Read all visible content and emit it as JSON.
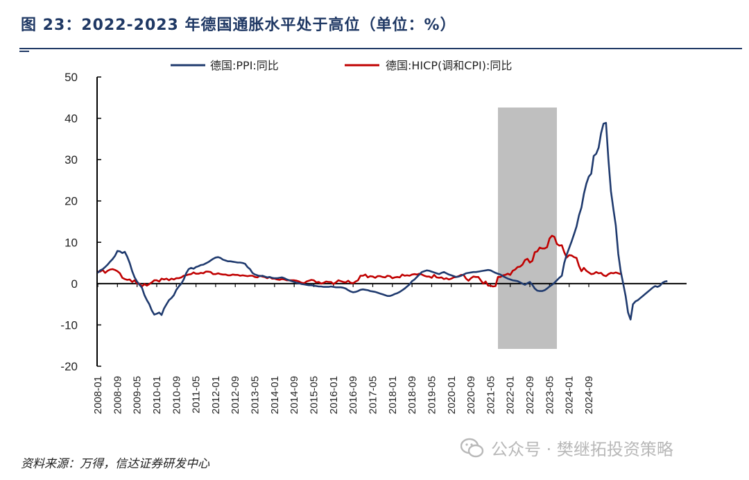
{
  "figure": {
    "title": "图 23：2022-2023 年德国通胀水平处于高位（单位：%）",
    "source": "资料来源：万得，信达证券研发中心",
    "watermark": "公众号 · 樊继拓投资策略"
  },
  "colors": {
    "accent": "#1f3864",
    "ppi": "#1f3a6e",
    "hicp": "#c00000",
    "shade": "#bfbfbf"
  },
  "chart_data": {
    "type": "line",
    "title": "",
    "xlabel": "",
    "ylabel": "",
    "ylim": [
      -20,
      50
    ],
    "yticks": [
      "50",
      "40",
      "30",
      "20",
      "10",
      "0",
      "-10",
      "-20"
    ],
    "xticks": [
      "2008-01",
      "2008-09",
      "2009-05",
      "2010-01",
      "2010-09",
      "2011-05",
      "2012-01",
      "2012-09",
      "2013-05",
      "2014-01",
      "2014-09",
      "2015-05",
      "2016-01",
      "2016-09",
      "2017-05",
      "2018-01",
      "2018-09",
      "2019-05",
      "2020-01",
      "2020-09",
      "2021-05",
      "2022-01",
      "2022-09",
      "2023-05",
      "2024-01",
      "2024-09"
    ],
    "x_start": "2008-01",
    "grid": false,
    "legend_position": "top",
    "shaded_region": {
      "from": "2021-08",
      "to": "2023-08"
    },
    "series": [
      {
        "name": "德国:PPI:同比",
        "color": "#1f3a6e",
        "values": [
          2.6,
          3.2,
          3.5,
          4.0,
          4.6,
          5.3,
          5.9,
          6.7,
          7.9,
          7.8,
          7.4,
          7.7,
          6.5,
          5.0,
          3.0,
          1.5,
          0.5,
          -0.3,
          -1.0,
          -2.8,
          -4.0,
          -5.0,
          -6.5,
          -7.5,
          -7.3,
          -7.0,
          -7.6,
          -6.0,
          -5.0,
          -4.0,
          -3.5,
          -2.8,
          -1.5,
          -0.7,
          0.0,
          1.0,
          2.5,
          3.5,
          3.8,
          3.6,
          4.0,
          4.2,
          4.5,
          4.6,
          4.9,
          5.2,
          5.6,
          6.0,
          6.3,
          6.4,
          6.2,
          5.8,
          5.6,
          5.4,
          5.4,
          5.3,
          5.2,
          5.1,
          5.1,
          5.0,
          4.8,
          4.0,
          3.5,
          2.6,
          2.2,
          2.0,
          1.8,
          1.9,
          1.7,
          1.5,
          1.6,
          1.4,
          1.3,
          1.3,
          1.4,
          1.5,
          1.3,
          1.0,
          0.8,
          0.6,
          0.4,
          0.2,
          0.1,
          -0.1,
          -0.2,
          -0.3,
          -0.4,
          -0.4,
          -0.5,
          -0.6,
          -0.7,
          -0.7,
          -0.8,
          -0.8,
          -0.8,
          -0.7,
          -0.8,
          -0.9,
          -0.9,
          -0.9,
          -1.0,
          -1.2,
          -1.6,
          -1.9,
          -2.1,
          -2.0,
          -1.8,
          -1.5,
          -1.4,
          -1.5,
          -1.6,
          -1.8,
          -1.9,
          -2.0,
          -2.2,
          -2.4,
          -2.6,
          -2.8,
          -3.0,
          -3.0,
          -2.8,
          -2.5,
          -2.3,
          -2.0,
          -1.6,
          -1.2,
          -0.7,
          -0.2,
          0.6,
          1.0,
          1.6,
          2.2,
          2.8,
          3.0,
          3.2,
          3.1,
          2.9,
          2.7,
          2.5,
          2.3,
          2.6,
          2.8,
          2.5,
          2.2,
          2.0,
          1.8,
          1.6,
          1.7,
          1.9,
          2.2,
          2.5,
          2.6,
          2.7,
          2.8,
          2.8,
          2.9,
          3.0,
          3.1,
          3.2,
          3.3,
          3.2,
          2.9,
          2.6,
          2.4,
          2.2,
          1.8,
          1.5,
          1.2,
          1.0,
          0.8,
          0.7,
          0.6,
          0.3,
          0.0,
          -0.3,
          0.1,
          0.4,
          -0.3,
          -1.2,
          -1.7,
          -1.8,
          -1.8,
          -1.6,
          -1.2,
          -0.7,
          -0.3,
          0.2,
          0.8,
          1.4,
          1.9,
          5.0,
          7.0,
          8.6,
          10.2,
          12.0,
          13.8,
          16.5,
          18.4,
          21.7,
          24.2,
          25.9,
          26.6,
          30.9,
          31.4,
          32.9,
          36.4,
          38.7,
          38.9,
          30.0,
          22.4,
          18.1,
          14.1,
          7.2,
          3.0,
          0.0,
          -3.0,
          -7.0,
          -8.7,
          -5.0,
          -4.3,
          -4.0,
          -3.5,
          -3.0,
          -2.5,
          -2.0,
          -1.5,
          -1.0,
          -0.6,
          -0.8,
          -0.5,
          0.2,
          0.5,
          0.6
        ]
      },
      {
        "name": "德国:HICP(调和CPI):同比",
        "color": "#c00000",
        "values": [
          2.9,
          2.9,
          3.3,
          2.6,
          3.1,
          3.4,
          3.5,
          3.3,
          3.0,
          2.5,
          1.4,
          1.1,
          0.9,
          1.0,
          0.4,
          0.8,
          0.0,
          0.0,
          -0.7,
          -0.1,
          -0.5,
          -0.1,
          0.3,
          0.8,
          0.8,
          0.5,
          1.2,
          1.0,
          1.2,
          0.8,
          1.2,
          1.0,
          1.3,
          1.3,
          1.5,
          1.9,
          2.0,
          2.2,
          2.3,
          2.7,
          2.4,
          2.4,
          2.6,
          2.5,
          2.9,
          2.9,
          2.8,
          2.3,
          2.3,
          2.5,
          2.3,
          2.2,
          2.2,
          2.0,
          2.0,
          2.2,
          2.1,
          2.1,
          1.9,
          2.0,
          1.9,
          1.8,
          1.9,
          1.9,
          1.6,
          1.5,
          1.9,
          1.7,
          1.6,
          1.3,
          1.6,
          1.2,
          1.2,
          1.0,
          0.9,
          1.1,
          1.0,
          0.8,
          0.8,
          0.8,
          0.8,
          0.7,
          0.5,
          0.2,
          0.1,
          0.5,
          0.7,
          0.9,
          0.8,
          0.3,
          0.4,
          0.0,
          0.2,
          0.5,
          0.4,
          0.4,
          -0.1,
          0.3,
          0.8,
          0.6,
          0.4,
          0.3,
          0.7,
          0.2,
          0.1,
          0.5,
          0.8,
          1.9,
          1.9,
          2.2,
          1.5,
          1.8,
          1.7,
          1.4,
          1.8,
          1.8,
          1.6,
          1.5,
          1.9,
          1.8,
          1.3,
          1.5,
          1.6,
          1.5,
          2.2,
          1.9,
          2.0,
          1.9,
          2.2,
          2.3,
          2.2,
          2.4,
          2.2,
          1.9,
          1.7,
          1.7,
          1.4,
          2.1,
          1.5,
          1.4,
          1.5,
          1.1,
          1.3,
          1.0,
          1.2,
          1.5,
          1.6,
          1.8,
          2.1,
          2.1,
          1.2,
          0.7,
          1.3,
          1.7,
          1.6,
          1.6,
          0.8,
          0.0,
          0.5,
          -0.5,
          -0.5,
          -0.7,
          -0.6,
          1.6,
          1.6,
          2.0,
          2.1,
          2.4,
          2.1,
          3.1,
          3.4,
          4.0,
          4.1,
          4.6,
          5.7,
          6.0,
          5.1,
          5.5,
          7.6,
          7.8,
          8.7,
          8.5,
          8.5,
          8.8,
          10.9,
          11.6,
          11.3,
          9.6,
          9.2,
          9.3,
          7.6,
          6.3,
          6.9,
          6.8,
          6.4,
          6.2,
          4.3,
          3.0,
          3.8,
          3.1,
          2.7,
          2.3,
          2.4,
          2.8,
          2.5,
          2.6,
          2.0,
          1.8,
          2.3,
          2.6,
          2.5,
          2.7,
          2.5,
          2.3
        ]
      }
    ]
  }
}
